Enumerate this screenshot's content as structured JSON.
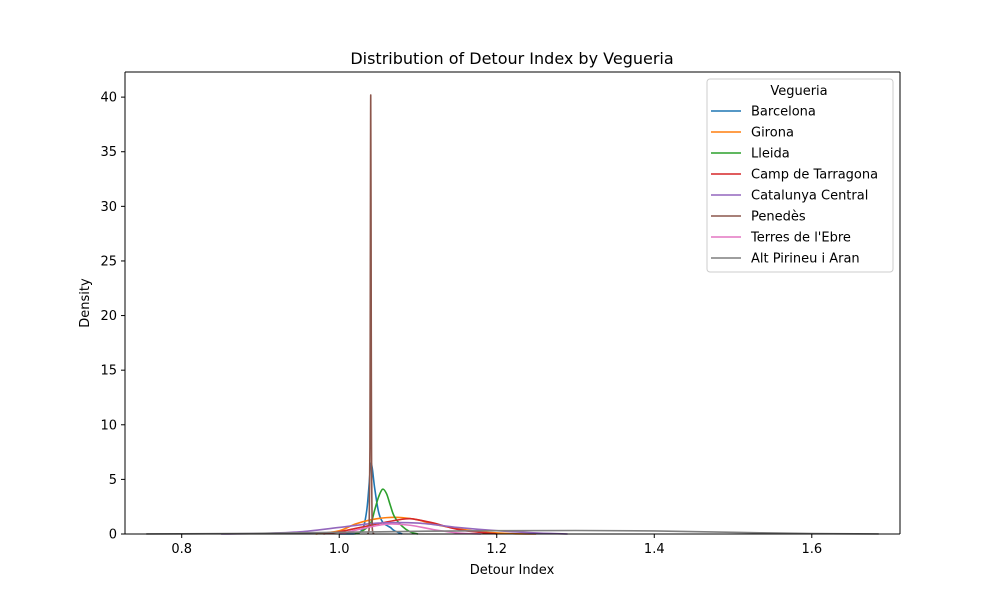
{
  "chart_data": {
    "type": "line",
    "title": "Distribution of Detour Index by Vegueria",
    "xlabel": "Detour Index",
    "ylabel": "Density",
    "xlim": [
      0.728,
      1.712
    ],
    "ylim": [
      0,
      42.3
    ],
    "xticks": [
      0.8,
      1.0,
      1.2,
      1.4,
      1.6
    ],
    "xtick_labels": [
      "0.8",
      "1.0",
      "1.2",
      "1.4",
      "1.6"
    ],
    "yticks": [
      0,
      5,
      10,
      15,
      20,
      25,
      30,
      35,
      40
    ],
    "ytick_labels": [
      "0",
      "5",
      "10",
      "15",
      "20",
      "25",
      "30",
      "35",
      "40"
    ],
    "grid": false,
    "legend": {
      "title": "Vegueria",
      "placement": "top-right"
    },
    "series": [
      {
        "name": "Barcelona",
        "color": "#1f77b4",
        "x": [
          1.0,
          1.02,
          1.03,
          1.035,
          1.038,
          1.04,
          1.042,
          1.045,
          1.05,
          1.055,
          1.06,
          1.065,
          1.07,
          1.08
        ],
        "y": [
          0,
          0.02,
          0.5,
          2.2,
          4.6,
          6.4,
          6.0,
          4.2,
          2.0,
          1.1,
          0.8,
          0.6,
          0.3,
          0
        ]
      },
      {
        "name": "Girona",
        "color": "#ff7f0e",
        "x": [
          0.97,
          1.0,
          1.02,
          1.04,
          1.06,
          1.08,
          1.1,
          1.12,
          1.15,
          1.18,
          1.2,
          1.22,
          1.25
        ],
        "y": [
          0,
          0.3,
          0.9,
          1.3,
          1.5,
          1.5,
          1.3,
          0.9,
          0.5,
          0.2,
          0.1,
          0.03,
          0
        ]
      },
      {
        "name": "Lleida",
        "color": "#2ca02c",
        "x": [
          1.02,
          1.03,
          1.04,
          1.045,
          1.05,
          1.055,
          1.06,
          1.065,
          1.07,
          1.08,
          1.09,
          1.1
        ],
        "y": [
          0,
          0.3,
          1.0,
          2.2,
          3.4,
          4.1,
          3.7,
          2.6,
          1.6,
          0.7,
          0.2,
          0
        ]
      },
      {
        "name": "Camp de Tarragona",
        "color": "#d62728",
        "x": [
          0.98,
          1.0,
          1.02,
          1.04,
          1.06,
          1.08,
          1.09,
          1.1,
          1.12,
          1.14,
          1.16,
          1.2
        ],
        "y": [
          0,
          0.2,
          0.5,
          0.8,
          1.1,
          1.35,
          1.4,
          1.3,
          1.0,
          0.6,
          0.3,
          0
        ]
      },
      {
        "name": "Catalunya Central",
        "color": "#9467bd",
        "x": [
          0.85,
          0.9,
          0.95,
          1.0,
          1.05,
          1.1,
          1.15,
          1.2,
          1.25,
          1.29
        ],
        "y": [
          0,
          0.05,
          0.2,
          0.6,
          1.0,
          1.0,
          0.6,
          0.3,
          0.1,
          0
        ]
      },
      {
        "name": "Penedès",
        "color": "#8c564b",
        "x": [
          1.036,
          1.038,
          1.039,
          1.0395,
          1.04,
          1.0405,
          1.041,
          1.042,
          1.044
        ],
        "y": [
          0,
          0.5,
          8.0,
          25.0,
          40.2,
          25.0,
          8.0,
          0.5,
          0
        ]
      },
      {
        "name": "Terres de l'Ebre",
        "color": "#e377c2",
        "x": [
          1.0,
          1.03,
          1.06,
          1.09,
          1.12,
          1.15,
          1.18
        ],
        "y": [
          0,
          0.5,
          0.9,
          0.8,
          0.4,
          0.1,
          0
        ]
      },
      {
        "name": "Alt Pirineu i Aran",
        "color": "#7f7f7f",
        "x": [
          0.755,
          0.8,
          0.9,
          1.0,
          1.1,
          1.2,
          1.3,
          1.4,
          1.5,
          1.6,
          1.685
        ],
        "y": [
          0.01,
          0.02,
          0.06,
          0.15,
          0.25,
          0.3,
          0.32,
          0.28,
          0.15,
          0.04,
          0.01
        ]
      }
    ]
  }
}
